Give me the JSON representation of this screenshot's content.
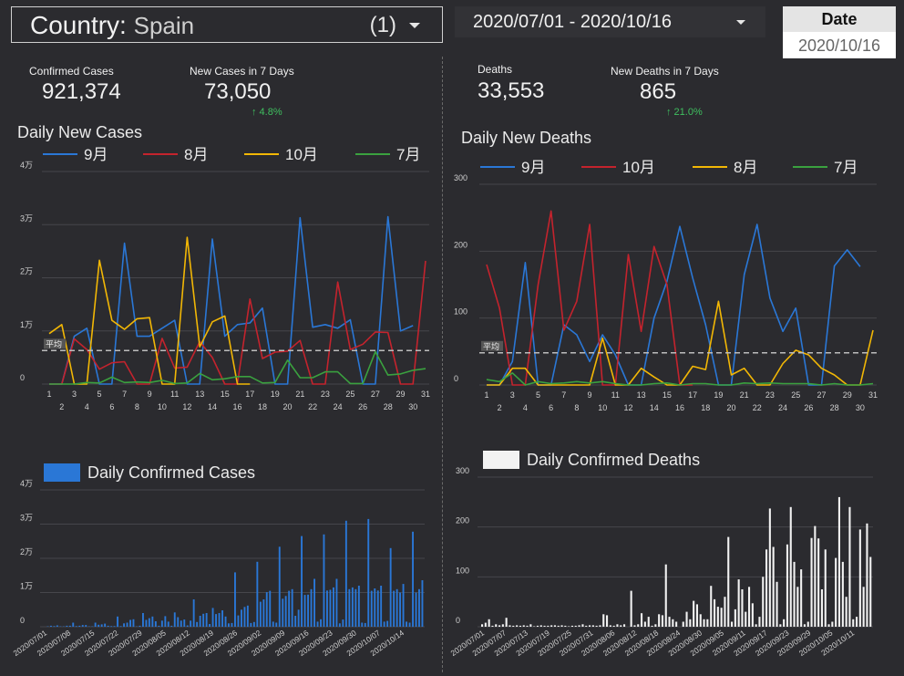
{
  "filters": {
    "country_label": "Country:",
    "country_value": "Spain",
    "country_count": "(1)",
    "date_range": "2020/07/01 - 2020/10/16",
    "date_card_header": "Date",
    "date_card_value": "2020/10/16"
  },
  "kpis_left": {
    "confirmed_label": "Confirmed Cases",
    "confirmed_value": "921,374",
    "new7_label": "New Cases in 7 Days",
    "new7_value": "73,050",
    "new7_change": "↑ 4.8%"
  },
  "kpis_right": {
    "deaths_label": "Deaths",
    "deaths_value": "33,553",
    "newd7_label": "New Deaths in 7 Days",
    "newd7_value": "865",
    "newd7_change": "↑ 21.0%"
  },
  "colors": {
    "blue": "#2a77d6",
    "red": "#c4232d",
    "yellow": "#f2b705",
    "green": "#3aa13f",
    "white": "#f2f2f2",
    "avg": "#bdbdbd",
    "grid": "#46464b"
  },
  "chart_data": [
    {
      "id": "daily_new_cases",
      "type": "line",
      "title": "Daily New Cases",
      "avg_label": "平均",
      "avg_value": 6300,
      "ylim": [
        0,
        40000
      ],
      "yticks": [
        0,
        10000,
        20000,
        30000,
        40000
      ],
      "ytick_labels": [
        "0",
        "1万",
        "2万",
        "3万",
        "4万"
      ],
      "x": [
        1,
        2,
        3,
        4,
        5,
        6,
        7,
        8,
        9,
        10,
        11,
        12,
        13,
        14,
        15,
        16,
        17,
        18,
        19,
        20,
        21,
        22,
        23,
        24,
        25,
        26,
        27,
        28,
        29,
        30,
        31
      ],
      "xtick_labels_top": [
        "1",
        "3",
        "5",
        "7",
        "9",
        "11",
        "13",
        "15",
        "17",
        "19",
        "21",
        "23",
        "25",
        "27",
        "29",
        "31"
      ],
      "xtick_labels_bottom": [
        "2",
        "4",
        "6",
        "8",
        "10",
        "12",
        "14",
        "16",
        "18",
        "20",
        "22",
        "24",
        "26",
        "28",
        "30"
      ],
      "series": [
        {
          "name": "9月",
          "color": "#2a77d6",
          "values": [
            0,
            0,
            9000,
            10500,
            0,
            0,
            26500,
            9000,
            9000,
            10500,
            12000,
            0,
            0,
            27300,
            9000,
            11200,
            11500,
            14300,
            0,
            0,
            31300,
            10700,
            11200,
            10500,
            12100,
            0,
            0,
            31500,
            10000,
            11000,
            null
          ]
        },
        {
          "name": "8月",
          "color": "#c4232d",
          "values": [
            0,
            0,
            8500,
            6500,
            2800,
            4000,
            4200,
            0,
            0,
            8600,
            3000,
            3200,
            8000,
            5000,
            0,
            0,
            16000,
            4800,
            6000,
            6200,
            8200,
            0,
            0,
            19200,
            6500,
            7500,
            9800,
            9700,
            0,
            0,
            23200
          ]
        },
        {
          "name": "10月",
          "color": "#f2b705",
          "values": [
            9500,
            11200,
            0,
            0,
            23300,
            12000,
            10300,
            12300,
            12500,
            0,
            0,
            27600,
            7000,
            11700,
            12800,
            0,
            0,
            null,
            null,
            null,
            null,
            null,
            null,
            null,
            null,
            null,
            null,
            null,
            null,
            null,
            null
          ]
        },
        {
          "name": "7月",
          "color": "#3aa13f",
          "values": [
            0,
            0,
            0,
            300,
            200,
            1300,
            300,
            400,
            300,
            700,
            100,
            200,
            2000,
            800,
            1000,
            1400,
            1400,
            200,
            300,
            4500,
            1200,
            1200,
            2300,
            2300,
            100,
            100,
            6100,
            1700,
            1900,
            2600,
            2900
          ]
        }
      ]
    },
    {
      "id": "daily_new_deaths",
      "type": "line",
      "title": "Daily New Deaths",
      "avg_label": "平均",
      "avg_value": 48,
      "ylim": [
        0,
        300
      ],
      "yticks": [
        0,
        100,
        200,
        300
      ],
      "ytick_labels": [
        "0",
        "100",
        "200",
        "300"
      ],
      "x": [
        1,
        2,
        3,
        4,
        5,
        6,
        7,
        8,
        9,
        10,
        11,
        12,
        13,
        14,
        15,
        16,
        17,
        18,
        19,
        20,
        21,
        22,
        23,
        24,
        25,
        26,
        27,
        28,
        29,
        30,
        31
      ],
      "xtick_labels_top": [
        "1",
        "3",
        "5",
        "7",
        "9",
        "11",
        "13",
        "15",
        "17",
        "19",
        "21",
        "23",
        "25",
        "27",
        "29",
        "31"
      ],
      "xtick_labels_bottom": [
        "2",
        "4",
        "6",
        "8",
        "10",
        "12",
        "14",
        "16",
        "18",
        "20",
        "22",
        "24",
        "26",
        "28",
        "30"
      ],
      "series": [
        {
          "name": "9月",
          "color": "#2a77d6",
          "values": [
            0,
            0,
            35,
            183,
            0,
            0,
            90,
            75,
            35,
            75,
            45,
            0,
            0,
            100,
            155,
            237,
            160,
            90,
            0,
            0,
            165,
            240,
            130,
            80,
            115,
            0,
            0,
            178,
            202,
            177,
            null
          ]
        },
        {
          "name": "10月",
          "color": "#c4232d",
          "values": [
            180,
            115,
            0,
            0,
            150,
            260,
            82,
            125,
            240,
            0,
            0,
            195,
            80,
            207,
            150,
            0,
            0,
            null,
            null,
            null,
            null,
            null,
            null,
            null,
            null,
            null,
            null,
            null,
            null,
            null,
            null
          ]
        },
        {
          "name": "8月",
          "color": "#f2b705",
          "values": [
            0,
            0,
            25,
            25,
            0,
            0,
            0,
            0,
            0,
            70,
            0,
            0,
            25,
            12,
            0,
            0,
            28,
            23,
            125,
            15,
            25,
            0,
            0,
            32,
            52,
            45,
            25,
            15,
            0,
            0,
            82
          ]
        },
        {
          "name": "7月",
          "color": "#3aa13f",
          "values": [
            8,
            5,
            18,
            0,
            5,
            2,
            3,
            5,
            3,
            5,
            2,
            0,
            0,
            2,
            3,
            0,
            2,
            2,
            0,
            0,
            3,
            2,
            3,
            2,
            2,
            2,
            0,
            2,
            0,
            0,
            2
          ]
        }
      ]
    },
    {
      "id": "daily_confirmed_cases",
      "type": "bar",
      "title": "Daily Confirmed Cases",
      "series_name": "Daily Confirmed Cases",
      "color": "#2a77d6",
      "ylim": [
        0,
        40000
      ],
      "yticks": [
        0,
        10000,
        20000,
        30000,
        40000
      ],
      "ytick_labels": [
        "0",
        "1万",
        "2万",
        "3万",
        "4万"
      ],
      "date_labels": [
        "2020/07/01",
        "2020/07/08",
        "2020/07/15",
        "2020/07/22",
        "2020/07/29",
        "2020/08/05",
        "2020/08/12",
        "2020/08/19",
        "2020/08/26",
        "2020/09/02",
        "2020/09/09",
        "2020/09/16",
        "2020/09/23",
        "2020/09/30",
        "2020/10/07",
        "2020/10/14"
      ],
      "values": [
        0,
        100,
        300,
        200,
        400,
        100,
        100,
        300,
        300,
        1200,
        200,
        300,
        500,
        500,
        100,
        100,
        1200,
        600,
        700,
        900,
        300,
        200,
        200,
        3000,
        200,
        1000,
        1200,
        2000,
        2200,
        100,
        300,
        4000,
        2000,
        2500,
        3000,
        1600,
        300,
        1800,
        3100,
        1500,
        300,
        4200,
        2800,
        1800,
        2100,
        400,
        1800,
        8000,
        1400,
        3200,
        3800,
        4000,
        800,
        5500,
        3700,
        4000,
        4800,
        3000,
        1000,
        1100,
        15900,
        3300,
        5000,
        5800,
        6200,
        1100,
        1400,
        19000,
        7300,
        8000,
        10100,
        10500,
        1500,
        1200,
        23400,
        8200,
        9000,
        10500,
        11000,
        3200,
        5000,
        26500,
        9300,
        9400,
        11000,
        14000,
        1500,
        2200,
        27000,
        10600,
        10800,
        11500,
        14000,
        1000,
        2100,
        31000,
        11000,
        11500,
        11000,
        12000,
        1200,
        1100,
        31500,
        10500,
        11200,
        10600,
        12000,
        1500,
        1700,
        23000,
        10500,
        11000,
        10000,
        12500,
        1500,
        1200,
        27800,
        10000,
        11000,
        13600
      ]
    },
    {
      "id": "daily_confirmed_deaths",
      "type": "bar",
      "title": "Daily Confirmed Deaths",
      "series_name": "Daily Confirmed Deaths",
      "color": "#f2f2f2",
      "ylim": [
        0,
        300
      ],
      "yticks": [
        0,
        100,
        200,
        300
      ],
      "ytick_labels": [
        "0",
        "100",
        "200",
        "300"
      ],
      "date_labels": [
        "2020/07/01",
        "2020/07/07",
        "2020/07/13",
        "2020/07/19",
        "2020/07/25",
        "2020/07/31",
        "2020/08/06",
        "2020/08/12",
        "2020/08/18",
        "2020/08/24",
        "2020/08/30",
        "2020/09/05",
        "2020/09/11",
        "2020/09/17",
        "2020/09/23",
        "2020/09/29",
        "2020/10/05",
        "2020/10/11"
      ],
      "values": [
        5,
        8,
        15,
        2,
        5,
        3,
        5,
        18,
        3,
        2,
        3,
        2,
        3,
        2,
        5,
        1,
        2,
        3,
        2,
        2,
        3,
        3,
        2,
        3,
        2,
        1,
        2,
        2,
        3,
        5,
        2,
        3,
        3,
        2,
        3,
        25,
        23,
        3,
        2,
        5,
        3,
        5,
        0,
        72,
        3,
        5,
        27,
        10,
        20,
        2,
        5,
        25,
        23,
        125,
        20,
        15,
        10,
        0,
        10,
        30,
        15,
        52,
        45,
        25,
        15,
        15,
        82,
        55,
        40,
        38,
        60,
        180,
        10,
        35,
        95,
        75,
        30,
        80,
        47,
        5,
        20,
        100,
        155,
        237,
        160,
        90,
        5,
        15,
        165,
        240,
        130,
        80,
        115,
        5,
        10,
        178,
        202,
        177,
        75,
        155,
        5,
        10,
        138,
        260,
        130,
        60,
        240,
        15,
        20,
        195,
        80,
        207,
        140
      ]
    }
  ]
}
